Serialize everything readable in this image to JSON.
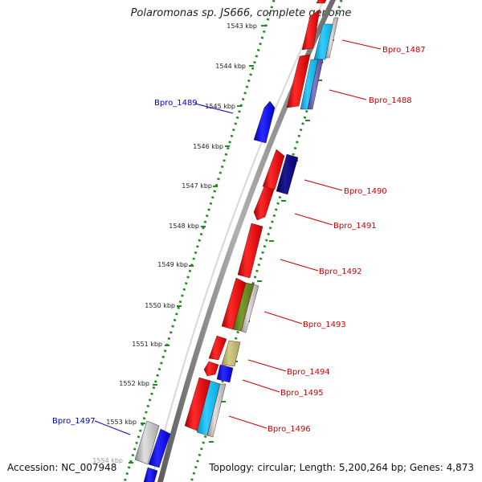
{
  "title": "Polaromonas sp. JS666, complete genome",
  "accession": "Accession: NC_007948",
  "topology": "Topology: circular; Length: 5,200,264 bp; Genes: 4,873",
  "colors": {
    "backbone": "#8c8c8c",
    "dots": "#228b22",
    "ticks": "#228b22",
    "label_left": "#0000cc",
    "label_right": "#cc0000"
  },
  "kbp_labels": [
    "1543 kbp",
    "1544 kbp",
    "1545 kbp",
    "1546 kbp",
    "1547 kbp",
    "1548 kbp",
    "1549 kbp",
    "1550 kbp",
    "1551 kbp",
    "1552 kbp",
    "1553 kbp",
    "1554 kbp"
  ],
  "gene_labels_left": [
    "Bpro_1489",
    "Bpro_1497"
  ],
  "gene_labels_right": [
    "Bpro_1487",
    "Bpro_1488",
    "Bpro_1490",
    "Bpro_1491",
    "Bpro_1492",
    "Bpro_1493",
    "Bpro_1494",
    "Bpro_1495",
    "Bpro_1496"
  ]
}
